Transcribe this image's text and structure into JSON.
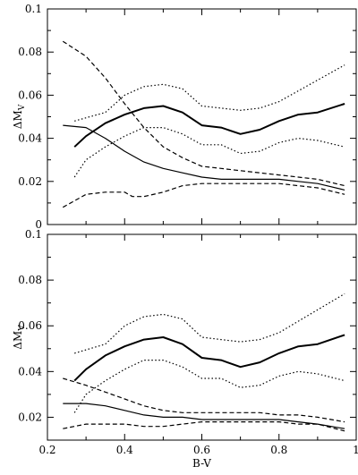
{
  "chart_data": [
    {
      "type": "line",
      "panel": "top",
      "xlabel": "",
      "ylabel": "ΔM",
      "ylabel_sub": "V",
      "xlim": [
        0.2,
        1.0
      ],
      "ylim": [
        0.0,
        0.1
      ],
      "xticks": [
        0.2,
        0.4,
        0.6,
        0.8,
        1.0
      ],
      "xtick_labels": [
        "",
        "",
        "",
        "",
        ""
      ],
      "yticks": [
        0.0,
        0.02,
        0.04,
        0.06,
        0.08,
        0.1
      ],
      "ytick_labels": [
        "0",
        "0.02",
        "0.04",
        "0.06",
        "0.08",
        "0.1"
      ],
      "series": [
        {
          "style": "thick-solid",
          "x": [
            0.27,
            0.3,
            0.35,
            0.4,
            0.45,
            0.5,
            0.55,
            0.6,
            0.65,
            0.7,
            0.75,
            0.8,
            0.85,
            0.9,
            0.97
          ],
          "y": [
            0.036,
            0.041,
            0.047,
            0.051,
            0.054,
            0.055,
            0.052,
            0.046,
            0.045,
            0.042,
            0.044,
            0.048,
            0.051,
            0.052,
            0.056
          ]
        },
        {
          "style": "dotted",
          "x": [
            0.27,
            0.35,
            0.4,
            0.45,
            0.5,
            0.55,
            0.6,
            0.65,
            0.7,
            0.75,
            0.8,
            0.85,
            0.9,
            0.97
          ],
          "y": [
            0.048,
            0.052,
            0.06,
            0.064,
            0.065,
            0.063,
            0.055,
            0.054,
            0.053,
            0.054,
            0.057,
            0.062,
            0.067,
            0.074
          ]
        },
        {
          "style": "dotted",
          "x": [
            0.27,
            0.3,
            0.35,
            0.4,
            0.45,
            0.5,
            0.55,
            0.6,
            0.65,
            0.7,
            0.75,
            0.8,
            0.85,
            0.9,
            0.97
          ],
          "y": [
            0.022,
            0.03,
            0.036,
            0.041,
            0.045,
            0.045,
            0.042,
            0.037,
            0.037,
            0.033,
            0.034,
            0.038,
            0.04,
            0.039,
            0.036
          ]
        },
        {
          "style": "thin-solid",
          "x": [
            0.24,
            0.3,
            0.35,
            0.4,
            0.45,
            0.5,
            0.55,
            0.6,
            0.65,
            0.7,
            0.75,
            0.8,
            0.85,
            0.9,
            0.97
          ],
          "y": [
            0.046,
            0.045,
            0.04,
            0.034,
            0.029,
            0.026,
            0.024,
            0.022,
            0.021,
            0.021,
            0.021,
            0.021,
            0.02,
            0.019,
            0.016
          ]
        },
        {
          "style": "dashed",
          "x": [
            0.24,
            0.3,
            0.35,
            0.4,
            0.45,
            0.5,
            0.55,
            0.6,
            0.65,
            0.7,
            0.75,
            0.8,
            0.85,
            0.9,
            0.97
          ],
          "y": [
            0.085,
            0.078,
            0.068,
            0.056,
            0.045,
            0.036,
            0.031,
            0.027,
            0.026,
            0.025,
            0.024,
            0.023,
            0.022,
            0.021,
            0.018
          ]
        },
        {
          "style": "dashed",
          "x": [
            0.24,
            0.3,
            0.35,
            0.4,
            0.42,
            0.45,
            0.5,
            0.55,
            0.6,
            0.65,
            0.7,
            0.75,
            0.8,
            0.85,
            0.9,
            0.97
          ],
          "y": [
            0.008,
            0.014,
            0.015,
            0.015,
            0.013,
            0.013,
            0.015,
            0.018,
            0.019,
            0.019,
            0.019,
            0.019,
            0.019,
            0.018,
            0.017,
            0.014
          ]
        }
      ]
    },
    {
      "type": "line",
      "panel": "bottom",
      "xlabel": "B-V",
      "ylabel": "ΔM",
      "ylabel_sub": "V",
      "xlim": [
        0.2,
        1.0
      ],
      "ylim": [
        0.01,
        0.1
      ],
      "xticks": [
        0.2,
        0.4,
        0.6,
        0.8,
        1.0
      ],
      "xtick_labels": [
        "0.2",
        "0.4",
        "0.6",
        "0.8",
        "1"
      ],
      "yticks": [
        0.02,
        0.04,
        0.06,
        0.08,
        0.1
      ],
      "ytick_labels": [
        "0.02",
        "0.04",
        "0.06",
        "0.08",
        "0.1"
      ],
      "series": [
        {
          "style": "thick-solid",
          "x": [
            0.27,
            0.3,
            0.35,
            0.4,
            0.45,
            0.5,
            0.55,
            0.6,
            0.65,
            0.7,
            0.75,
            0.8,
            0.85,
            0.9,
            0.97
          ],
          "y": [
            0.036,
            0.041,
            0.047,
            0.051,
            0.054,
            0.055,
            0.052,
            0.046,
            0.045,
            0.042,
            0.044,
            0.048,
            0.051,
            0.052,
            0.056
          ]
        },
        {
          "style": "dotted",
          "x": [
            0.27,
            0.35,
            0.4,
            0.45,
            0.5,
            0.55,
            0.6,
            0.65,
            0.7,
            0.75,
            0.8,
            0.85,
            0.9,
            0.97
          ],
          "y": [
            0.048,
            0.052,
            0.06,
            0.064,
            0.065,
            0.063,
            0.055,
            0.054,
            0.053,
            0.054,
            0.057,
            0.062,
            0.067,
            0.074
          ]
        },
        {
          "style": "dotted",
          "x": [
            0.27,
            0.3,
            0.35,
            0.4,
            0.45,
            0.5,
            0.55,
            0.6,
            0.65,
            0.7,
            0.75,
            0.8,
            0.85,
            0.9,
            0.97
          ],
          "y": [
            0.022,
            0.03,
            0.036,
            0.041,
            0.045,
            0.045,
            0.042,
            0.037,
            0.037,
            0.033,
            0.034,
            0.038,
            0.04,
            0.039,
            0.036
          ]
        },
        {
          "style": "thin-solid",
          "x": [
            0.24,
            0.3,
            0.35,
            0.4,
            0.45,
            0.5,
            0.55,
            0.6,
            0.65,
            0.7,
            0.75,
            0.8,
            0.85,
            0.9,
            0.97
          ],
          "y": [
            0.026,
            0.026,
            0.025,
            0.023,
            0.021,
            0.02,
            0.02,
            0.019,
            0.019,
            0.019,
            0.019,
            0.019,
            0.018,
            0.017,
            0.015
          ]
        },
        {
          "style": "dashed",
          "x": [
            0.24,
            0.3,
            0.35,
            0.4,
            0.45,
            0.5,
            0.55,
            0.6,
            0.65,
            0.7,
            0.75,
            0.8,
            0.85,
            0.9,
            0.97
          ],
          "y": [
            0.037,
            0.034,
            0.031,
            0.028,
            0.025,
            0.023,
            0.022,
            0.022,
            0.022,
            0.022,
            0.022,
            0.021,
            0.021,
            0.02,
            0.018
          ]
        },
        {
          "style": "dashed",
          "x": [
            0.24,
            0.3,
            0.35,
            0.4,
            0.45,
            0.5,
            0.55,
            0.6,
            0.65,
            0.7,
            0.75,
            0.8,
            0.85,
            0.9,
            0.97
          ],
          "y": [
            0.015,
            0.017,
            0.017,
            0.017,
            0.016,
            0.016,
            0.017,
            0.018,
            0.018,
            0.018,
            0.018,
            0.018,
            0.017,
            0.017,
            0.014
          ]
        }
      ]
    }
  ]
}
